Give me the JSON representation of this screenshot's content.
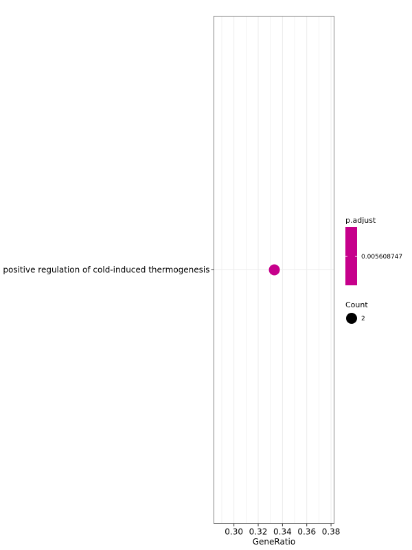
{
  "chart_data": {
    "type": "scatter",
    "title": "",
    "xlabel": "GeneRatio",
    "ylabel": "",
    "xlim": [
      0.2835,
      0.3825
    ],
    "xticks": [
      0.3,
      0.32,
      0.34,
      0.36,
      0.38
    ],
    "xtick_labels": [
      "0.30",
      "0.32",
      "0.34",
      "0.36",
      "0.38"
    ],
    "categories": [
      "positive regulation of cold-induced thermogenesis"
    ],
    "points": [
      {
        "term": "positive regulation of cold-induced thermogenesis",
        "gene_ratio": 0.3333,
        "count": 2,
        "p_adjust": 0.005608747
      }
    ],
    "grid": true,
    "legend": {
      "placement": "right",
      "color_title": "p.adjust",
      "color_label": "0.005608747",
      "size_title": "Count",
      "size_label": "2"
    },
    "colors": {
      "point": "#C6008B",
      "colorbar": "#C6008B",
      "size_key": "#000000",
      "grid": "#EBEBEB",
      "panel_border": "#7F7F7F"
    }
  }
}
